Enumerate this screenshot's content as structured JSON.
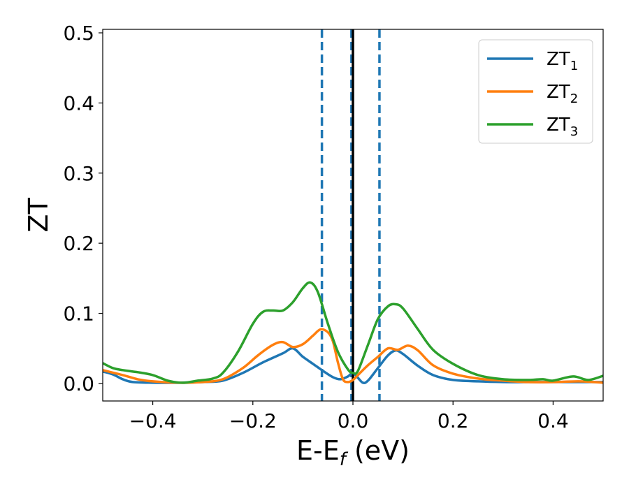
{
  "chart_data": {
    "type": "line",
    "xlabel": {
      "main": "E-E",
      "sub": "f",
      "tail": " (eV)"
    },
    "ylabel": "ZT",
    "xlim": [
      -0.5,
      0.5
    ],
    "ylim": [
      -0.025,
      0.505
    ],
    "xticks": [
      -0.4,
      -0.2,
      0.0,
      0.2,
      0.4
    ],
    "xtick_labels": [
      "−0.4",
      "−0.2",
      "0.0",
      "0.2",
      "0.4"
    ],
    "yticks": [
      0.0,
      0.1,
      0.2,
      0.3,
      0.4,
      0.5
    ],
    "ytick_labels": [
      "0.0",
      "0.1",
      "0.2",
      "0.3",
      "0.4",
      "0.5"
    ],
    "grid": false,
    "legend": "top-right",
    "vlines": [
      {
        "x": -0.062,
        "style": "dashed",
        "color": "#1f77b4"
      },
      {
        "x": -0.003,
        "style": "dashed",
        "color": "#1f77b4"
      },
      {
        "x": 0.0,
        "style": "solid",
        "color": "#000000"
      },
      {
        "x": 0.053,
        "style": "dashed",
        "color": "#1f77b4"
      }
    ],
    "series": [
      {
        "name": "ZT",
        "sub": "1",
        "color": "#1f77b4",
        "points": [
          [
            -0.5,
            0.017
          ],
          [
            -0.48,
            0.013
          ],
          [
            -0.46,
            0.006
          ],
          [
            -0.44,
            0.002
          ],
          [
            -0.4,
            0.001
          ],
          [
            -0.35,
            0.001
          ],
          [
            -0.3,
            0.002
          ],
          [
            -0.26,
            0.004
          ],
          [
            -0.22,
            0.015
          ],
          [
            -0.18,
            0.03
          ],
          [
            -0.14,
            0.043
          ],
          [
            -0.12,
            0.05
          ],
          [
            -0.1,
            0.038
          ],
          [
            -0.08,
            0.028
          ],
          [
            -0.06,
            0.018
          ],
          [
            -0.04,
            0.009
          ],
          [
            -0.025,
            0.006
          ],
          [
            -0.01,
            0.01
          ],
          [
            0.0,
            0.015
          ],
          [
            0.01,
            0.008
          ],
          [
            0.02,
            0.001
          ],
          [
            0.03,
            0.004
          ],
          [
            0.05,
            0.022
          ],
          [
            0.07,
            0.04
          ],
          [
            0.085,
            0.047
          ],
          [
            0.1,
            0.042
          ],
          [
            0.13,
            0.025
          ],
          [
            0.16,
            0.012
          ],
          [
            0.2,
            0.005
          ],
          [
            0.25,
            0.003
          ],
          [
            0.3,
            0.002
          ],
          [
            0.35,
            0.002
          ],
          [
            0.4,
            0.002
          ],
          [
            0.45,
            0.002
          ],
          [
            0.5,
            0.002
          ]
        ]
      },
      {
        "name": "ZT",
        "sub": "2",
        "color": "#ff7f0e",
        "points": [
          [
            -0.5,
            0.019
          ],
          [
            -0.46,
            0.012
          ],
          [
            -0.43,
            0.006
          ],
          [
            -0.4,
            0.003
          ],
          [
            -0.35,
            0.001
          ],
          [
            -0.3,
            0.002
          ],
          [
            -0.26,
            0.006
          ],
          [
            -0.22,
            0.022
          ],
          [
            -0.19,
            0.04
          ],
          [
            -0.16,
            0.055
          ],
          [
            -0.14,
            0.059
          ],
          [
            -0.12,
            0.052
          ],
          [
            -0.1,
            0.056
          ],
          [
            -0.08,
            0.068
          ],
          [
            -0.065,
            0.077
          ],
          [
            -0.05,
            0.073
          ],
          [
            -0.04,
            0.06
          ],
          [
            -0.03,
            0.03
          ],
          [
            -0.02,
            0.006
          ],
          [
            -0.01,
            0.002
          ],
          [
            0.0,
            0.005
          ],
          [
            0.01,
            0.012
          ],
          [
            0.03,
            0.026
          ],
          [
            0.05,
            0.038
          ],
          [
            0.07,
            0.05
          ],
          [
            0.09,
            0.048
          ],
          [
            0.11,
            0.054
          ],
          [
            0.13,
            0.047
          ],
          [
            0.16,
            0.026
          ],
          [
            0.2,
            0.014
          ],
          [
            0.25,
            0.007
          ],
          [
            0.3,
            0.004
          ],
          [
            0.35,
            0.002
          ],
          [
            0.4,
            0.002
          ],
          [
            0.45,
            0.003
          ],
          [
            0.48,
            0.002
          ],
          [
            0.5,
            0.001
          ]
        ]
      },
      {
        "name": "ZT",
        "sub": "3",
        "color": "#2ca02c",
        "points": [
          [
            -0.5,
            0.029
          ],
          [
            -0.48,
            0.022
          ],
          [
            -0.46,
            0.019
          ],
          [
            -0.43,
            0.016
          ],
          [
            -0.4,
            0.012
          ],
          [
            -0.37,
            0.004
          ],
          [
            -0.34,
            0.001
          ],
          [
            -0.31,
            0.004
          ],
          [
            -0.28,
            0.007
          ],
          [
            -0.26,
            0.015
          ],
          [
            -0.23,
            0.045
          ],
          [
            -0.2,
            0.085
          ],
          [
            -0.18,
            0.102
          ],
          [
            -0.16,
            0.104
          ],
          [
            -0.14,
            0.104
          ],
          [
            -0.12,
            0.116
          ],
          [
            -0.1,
            0.136
          ],
          [
            -0.085,
            0.144
          ],
          [
            -0.07,
            0.13
          ],
          [
            -0.05,
            0.085
          ],
          [
            -0.03,
            0.045
          ],
          [
            -0.01,
            0.02
          ],
          [
            0.0,
            0.015
          ],
          [
            0.01,
            0.018
          ],
          [
            0.03,
            0.055
          ],
          [
            0.05,
            0.092
          ],
          [
            0.07,
            0.11
          ],
          [
            0.085,
            0.113
          ],
          [
            0.1,
            0.107
          ],
          [
            0.13,
            0.077
          ],
          [
            0.16,
            0.048
          ],
          [
            0.2,
            0.028
          ],
          [
            0.25,
            0.012
          ],
          [
            0.3,
            0.006
          ],
          [
            0.35,
            0.005
          ],
          [
            0.38,
            0.006
          ],
          [
            0.4,
            0.004
          ],
          [
            0.44,
            0.01
          ],
          [
            0.47,
            0.005
          ],
          [
            0.5,
            0.011
          ]
        ]
      }
    ]
  }
}
